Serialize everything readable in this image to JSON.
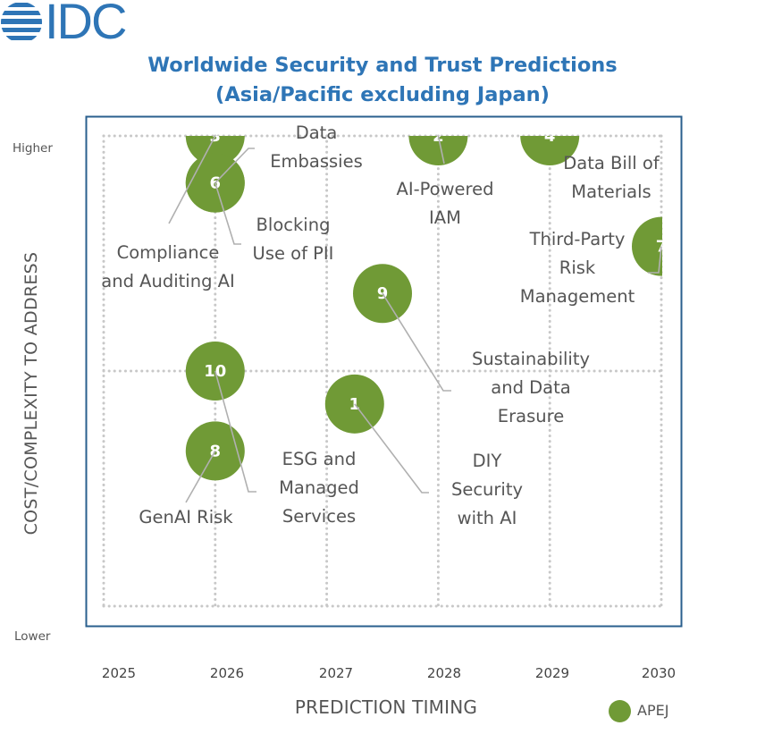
{
  "logo": {
    "text": "IDC"
  },
  "colors": {
    "accent": "#2E75B6",
    "bubble": "#709A36",
    "frame": "#2A5F8E",
    "leader": "#b0b0b0"
  },
  "chart_data": {
    "type": "scatter",
    "title": "Worldwide Security and Trust Predictions",
    "subtitle": "(Asia/Pacific excluding Japan)",
    "xlabel": "PREDICTION TIMING",
    "ylabel": "COST/COMPLEXITY TO ADDRESS",
    "x_ticks": [
      "2025",
      "2026",
      "2027",
      "2028",
      "2029",
      "2030"
    ],
    "xlim": [
      2025,
      2030
    ],
    "ylim": [
      0,
      10
    ],
    "y_tick_labels": {
      "high": "Higher",
      "low": "Lower"
    },
    "grid": true,
    "legend": {
      "position": "bottom-right",
      "entries": [
        "APEJ"
      ]
    },
    "series": [
      {
        "name": "APEJ",
        "points": [
          {
            "id": "1",
            "x": 2027.25,
            "y": 4.3,
            "label": [
              "DIY",
              "Security",
              "with AI"
            ]
          },
          {
            "id": "2",
            "x": 2028.0,
            "y": 10.0,
            "label": [
              "AI-Powered",
              "IAM"
            ]
          },
          {
            "id": "3",
            "x": 2026.0,
            "y": 10.0,
            "label": [
              "Compliance",
              "and Auditing AI"
            ]
          },
          {
            "id": "4",
            "x": 2029.0,
            "y": 10.0,
            "label": [
              "Data Bill of",
              "Materials"
            ]
          },
          {
            "id": "5",
            "x": 2026.0,
            "y": 9.0,
            "label": [
              "Data",
              "Embassies"
            ]
          },
          {
            "id": "6",
            "x": 2026.0,
            "y": 9.0,
            "label": [
              "Blocking",
              "Use of PII"
            ]
          },
          {
            "id": "7",
            "x": 2030.0,
            "y": 7.65,
            "label": [
              "Third-Party",
              "Risk",
              "Management"
            ]
          },
          {
            "id": "8",
            "x": 2026.0,
            "y": 3.3,
            "label": [
              "GenAI Risk"
            ]
          },
          {
            "id": "9",
            "x": 2027.5,
            "y": 6.65,
            "label": [
              "Sustainability",
              "and Data",
              "Erasure"
            ]
          },
          {
            "id": "10",
            "x": 2026.0,
            "y": 5.0,
            "label": [
              "ESG and",
              "Managed",
              "Services"
            ]
          }
        ]
      }
    ]
  }
}
